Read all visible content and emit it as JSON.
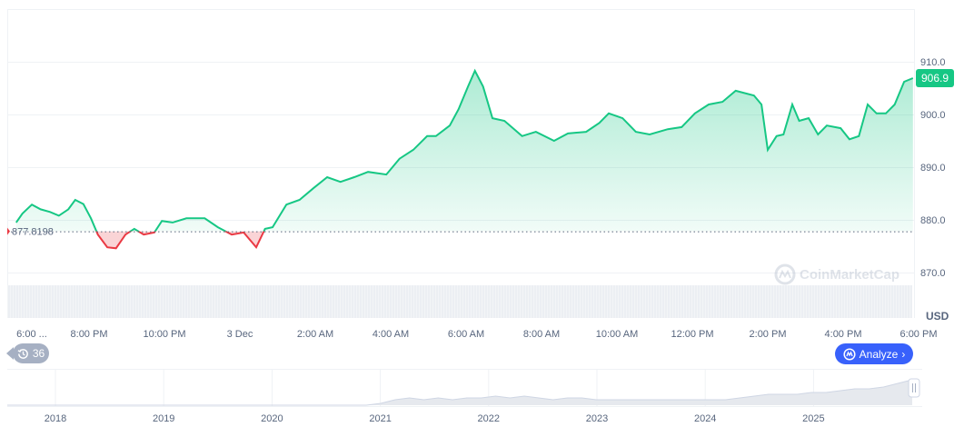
{
  "chart_data": {
    "type": "area",
    "y_ticks": [
      "910.0",
      "900.0",
      "890.0",
      "880.0",
      "870.0"
    ],
    "y_tick_values": [
      910,
      900,
      890,
      880,
      870
    ],
    "ylim": [
      866,
      916
    ],
    "y_unit": "USD",
    "x_tick_labels": [
      "6:00 ...",
      "8:00 PM",
      "10:00 PM",
      "3 Dec",
      "2:00 AM",
      "4:00 AM",
      "6:00 AM",
      "8:00 AM",
      "10:00 AM",
      "12:00 PM",
      "2:00 PM",
      "4:00 PM",
      "6:00 PM"
    ],
    "x_range": [
      "18:00",
      "18:00 (+1 day)"
    ],
    "baseline": 877.8198,
    "baseline_label": "877.8198",
    "current_price_label": "906.9",
    "grid": true,
    "colors": {
      "up": "#16c784",
      "down": "#ea3943",
      "up_fill": "#16c784",
      "down_fill": "#ea3943",
      "badge": "#16c784"
    },
    "series": [
      {
        "x": [
          "18:04",
          "18:14",
          "18:29",
          "18:43",
          "18:58",
          "19:12",
          "19:27",
          "19:38",
          "19:51",
          "20:03",
          "20:14",
          "20:29",
          "20:43",
          "20:58",
          "21:12",
          "21:27",
          "21:44",
          "21:56",
          "22:13",
          "22:35",
          "23:04",
          "23:25",
          "23:47",
          "00:06",
          "00:26",
          "00:40",
          "00:52",
          "01:14",
          "01:35",
          "01:57",
          "02:19",
          "02:40",
          "03:02",
          "03:24",
          "03:53",
          "04:14",
          "04:36",
          "04:58",
          "05:12",
          "05:34",
          "05:48",
          "06:03",
          "06:14",
          "06:27",
          "06:42",
          "07:01",
          "07:29",
          "07:51",
          "08:20",
          "08:42",
          "09:11",
          "09:32",
          "09:47",
          "10:09",
          "10:30",
          "10:52",
          "11:21",
          "11:43",
          "12:04",
          "12:26",
          "12:48",
          "13:09",
          "13:38",
          "13:50",
          "14:00",
          "14:14",
          "14:25",
          "14:39",
          "14:50",
          "15:05",
          "15:20",
          "15:34",
          "15:56",
          "16:10",
          "16:25",
          "16:39",
          "16:53",
          "17:08",
          "17:22",
          "17:37",
          "17:51"
        ],
        "values": [
          879.5,
          881.2,
          882.9,
          882.0,
          881.5,
          880.8,
          882.0,
          883.8,
          883.0,
          880.3,
          877.2,
          874.8,
          874.6,
          877.2,
          878.3,
          877.2,
          877.6,
          879.8,
          879.5,
          880.3,
          880.3,
          878.6,
          877.2,
          877.6,
          874.8,
          878.3,
          878.6,
          882.9,
          883.8,
          886.0,
          888.1,
          887.2,
          888.1,
          889.1,
          888.6,
          891.6,
          893.3,
          895.9,
          895.9,
          897.9,
          901.0,
          905.3,
          908.3,
          905.3,
          899.3,
          898.8,
          895.9,
          896.7,
          895.0,
          896.4,
          896.7,
          898.4,
          900.2,
          899.3,
          896.7,
          896.2,
          897.2,
          897.6,
          900.2,
          901.9,
          902.4,
          904.5,
          903.6,
          901.9,
          893.3,
          895.9,
          896.2,
          901.9,
          898.8,
          899.3,
          896.2,
          897.9,
          897.4,
          895.3,
          895.9,
          901.9,
          900.2,
          900.2,
          901.9,
          906.2,
          906.9
        ]
      }
    ],
    "navigator": {
      "year_labels": [
        "2018",
        "2019",
        "2020",
        "2021",
        "2022",
        "2023",
        "2024",
        "2025"
      ],
      "values": [
        0,
        0,
        0,
        0,
        0,
        0,
        0,
        0,
        0,
        0,
        0,
        0,
        0,
        0,
        0,
        0,
        0,
        0,
        0,
        0,
        0,
        0,
        0,
        0,
        0,
        0,
        1,
        3,
        4,
        3,
        4,
        3,
        4,
        4,
        5,
        4,
        5,
        4,
        3,
        4,
        4,
        3,
        3,
        3,
        3,
        3,
        3,
        3,
        3,
        3,
        3,
        4,
        5,
        6,
        6,
        6,
        7,
        7,
        8,
        9,
        9,
        10,
        12,
        14
      ]
    },
    "watermark": "CoinMarketCap"
  },
  "controls": {
    "history_count": "36",
    "analyze_label": "Analyze"
  }
}
